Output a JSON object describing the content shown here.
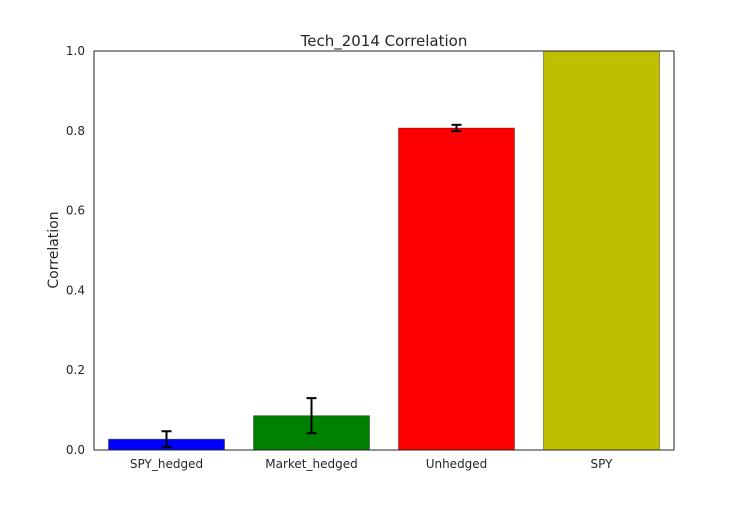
{
  "chart_data": {
    "type": "bar",
    "title": "Tech_2014 Correlation",
    "xlabel": "",
    "ylabel": "Correlation",
    "ylim": [
      0,
      1.0
    ],
    "yticks": [
      "0.0",
      "0.2",
      "0.4",
      "0.6",
      "0.8",
      "1.0"
    ],
    "categories": [
      "SPY_hedged",
      "Market_hedged",
      "Unhedged",
      "SPY"
    ],
    "values": [
      0.027,
      0.086,
      0.807,
      1.0
    ],
    "errors": [
      0.02,
      0.044,
      0.008,
      null
    ],
    "colors": [
      "#0000ff",
      "#008000",
      "#ff0000",
      "#bfbf00"
    ],
    "grid": false
  }
}
